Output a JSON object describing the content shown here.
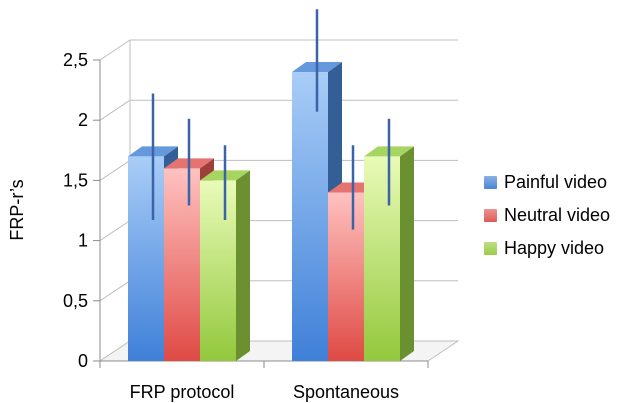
{
  "chart_data": {
    "type": "bar",
    "title": "",
    "xlabel": "",
    "ylabel": "FRP-r’s",
    "categories": [
      "FRP protocol",
      "Spontaneous"
    ],
    "ylim": [
      0,
      2.5
    ],
    "yticks": [
      "0",
      "0,5",
      "1",
      "1,5",
      "2",
      "2,5"
    ],
    "grid": true,
    "legend_position": "right",
    "three_d": true,
    "series": [
      {
        "name": "Painful video",
        "color": "#4a86d6",
        "values": [
          1.7,
          2.4
        ],
        "error_low": [
          1.13,
          2.03
        ],
        "error_high": [
          2.18,
          2.88
        ]
      },
      {
        "name": "Neutral video",
        "color": "#e05a55",
        "values": [
          1.6,
          1.4
        ],
        "error_low": [
          1.25,
          1.05
        ],
        "error_high": [
          1.97,
          1.75
        ]
      },
      {
        "name": "Happy video",
        "color": "#98cd45",
        "values": [
          1.5,
          1.7
        ],
        "error_low": [
          1.13,
          1.25
        ],
        "error_high": [
          1.75,
          1.97
        ]
      }
    ]
  }
}
